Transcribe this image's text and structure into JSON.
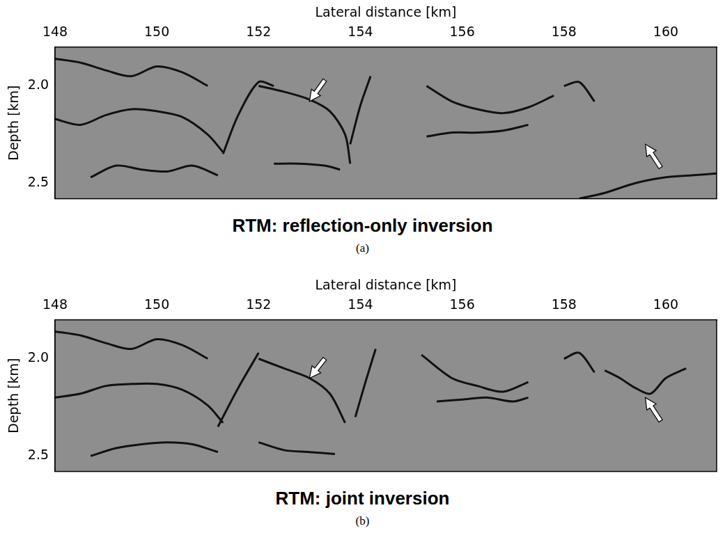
{
  "chart_data": [
    {
      "type": "line",
      "title": "RTM: reflection-only inversion",
      "subtitle": "(a)",
      "x_label": "Lateral distance [km]",
      "y_label": "Depth [km]",
      "xlim": [
        148,
        161
      ],
      "xticks": [
        148,
        150,
        152,
        154,
        156,
        158,
        160
      ],
      "ylim": [
        1.8,
        2.58
      ],
      "yticks": [
        {
          "value": 2.0,
          "label": "2.0"
        },
        {
          "value": 2.5,
          "label": "2.5"
        }
      ],
      "grid": false,
      "color": "#111111",
      "series": [
        {
          "x": [
            148,
            148.5,
            149,
            149.5,
            150,
            150.5,
            151,
            151.3
          ],
          "values": [
            2.17,
            2.2,
            2.15,
            2.12,
            2.13,
            2.16,
            2.25,
            2.34
          ]
        },
        {
          "x": [
            148,
            148.5,
            149,
            149.5,
            150,
            150.5,
            151
          ],
          "values": [
            1.86,
            1.88,
            1.92,
            1.95,
            1.9,
            1.93,
            2.0
          ]
        },
        {
          "x": [
            148.7,
            149.2,
            149.7,
            150.2,
            150.7,
            151.2
          ],
          "values": [
            2.47,
            2.41,
            2.43,
            2.44,
            2.41,
            2.46
          ]
        },
        {
          "x": [
            151.3,
            151.6,
            152,
            152.3
          ],
          "values": [
            2.35,
            2.15,
            1.98,
            2.0
          ]
        },
        {
          "x": [
            152,
            152.5,
            153,
            153.4,
            153.7,
            153.8
          ],
          "values": [
            2.0,
            2.03,
            2.07,
            2.13,
            2.25,
            2.4
          ]
        },
        {
          "x": [
            152.3,
            152.8,
            153.3,
            153.6
          ],
          "values": [
            2.4,
            2.4,
            2.41,
            2.43
          ]
        },
        {
          "x": [
            154.2,
            154,
            153.8
          ],
          "values": [
            1.95,
            2.1,
            2.3
          ]
        },
        {
          "x": [
            155.3,
            155.8,
            156.3,
            156.8,
            157.3,
            157.8
          ],
          "values": [
            2.0,
            2.08,
            2.12,
            2.14,
            2.11,
            2.05
          ]
        },
        {
          "x": [
            155.3,
            155.8,
            156.3,
            156.8,
            157.3
          ],
          "values": [
            2.26,
            2.24,
            2.24,
            2.23,
            2.2
          ]
        },
        {
          "x": [
            158.3,
            158.8,
            159.4,
            160,
            160.5,
            161
          ],
          "values": [
            2.58,
            2.55,
            2.5,
            2.47,
            2.46,
            2.45
          ]
        },
        {
          "x": [
            158,
            158.3,
            158.6
          ],
          "values": [
            2.0,
            1.98,
            2.08
          ]
        }
      ],
      "arrows": [
        {
          "tip_x": 153.0,
          "tip_y": 2.08,
          "tail_x": 153.3,
          "tail_y": 1.97
        },
        {
          "tip_x": 159.6,
          "tip_y": 2.3,
          "tail_x": 159.9,
          "tail_y": 2.42
        }
      ]
    },
    {
      "type": "line",
      "title": "RTM: joint inversion",
      "subtitle": "(b)",
      "x_label": "Lateral distance [km]",
      "y_label": "Depth [km]",
      "xlim": [
        148,
        161
      ],
      "xticks": [
        148,
        150,
        152,
        154,
        156,
        158,
        160
      ],
      "ylim": [
        1.8,
        2.58
      ],
      "yticks": [
        {
          "value": 2.0,
          "label": "2.0"
        },
        {
          "value": 2.5,
          "label": "2.5"
        }
      ],
      "grid": false,
      "color": "#111111",
      "series": [
        {
          "x": [
            148,
            148.5,
            149,
            149.5,
            150,
            150.5,
            151,
            151.3
          ],
          "values": [
            2.2,
            2.18,
            2.14,
            2.13,
            2.13,
            2.16,
            2.24,
            2.33
          ]
        },
        {
          "x": [
            148,
            148.5,
            149,
            149.5,
            150,
            150.5,
            151
          ],
          "values": [
            1.86,
            1.88,
            1.92,
            1.95,
            1.9,
            1.93,
            2.0
          ]
        },
        {
          "x": [
            148.7,
            149.2,
            149.7,
            150.2,
            150.7,
            151.2
          ],
          "values": [
            2.5,
            2.46,
            2.44,
            2.43,
            2.44,
            2.48
          ]
        },
        {
          "x": [
            151.2,
            151.6,
            152
          ],
          "values": [
            2.35,
            2.15,
            1.97
          ]
        },
        {
          "x": [
            152,
            152.5,
            153,
            153.4,
            153.7
          ],
          "values": [
            2.0,
            2.05,
            2.1,
            2.18,
            2.33
          ]
        },
        {
          "x": [
            152,
            152.5,
            153,
            153.5
          ],
          "values": [
            2.43,
            2.47,
            2.48,
            2.49
          ]
        },
        {
          "x": [
            154.3,
            154.1,
            153.9
          ],
          "values": [
            1.95,
            2.12,
            2.3
          ]
        },
        {
          "x": [
            155.2,
            155.8,
            156.3,
            156.8,
            157.3
          ],
          "values": [
            1.98,
            2.1,
            2.14,
            2.17,
            2.12
          ]
        },
        {
          "x": [
            155.5,
            156,
            156.5,
            157,
            157.3
          ],
          "values": [
            2.22,
            2.21,
            2.2,
            2.22,
            2.2
          ]
        },
        {
          "x": [
            158.8,
            159.1,
            159.4,
            159.7,
            160,
            160.4
          ],
          "values": [
            2.06,
            2.1,
            2.15,
            2.18,
            2.1,
            2.05
          ]
        },
        {
          "x": [
            158,
            158.3,
            158.6
          ],
          "values": [
            2.0,
            1.97,
            2.07
          ]
        }
      ],
      "arrows": [
        {
          "tip_x": 153.0,
          "tip_y": 2.1,
          "tail_x": 153.3,
          "tail_y": 2.0
        },
        {
          "tip_x": 159.6,
          "tip_y": 2.2,
          "tail_x": 159.9,
          "tail_y": 2.32
        }
      ]
    }
  ]
}
